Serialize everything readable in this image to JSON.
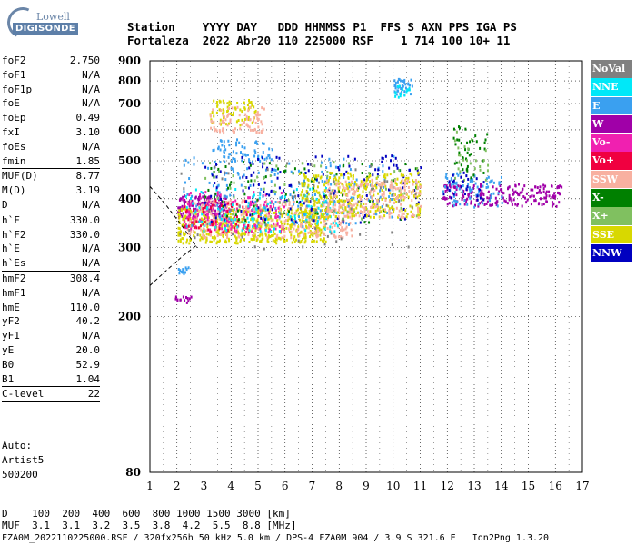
{
  "logo": {
    "line1": "Lowell",
    "line2": "DIGISONDE"
  },
  "header": {
    "line1": "Station    YYYY DAY   DDD HHMMSS P1  FFS S AXN PPS IGA PS",
    "line2": "Fortaleza  2022 Abr20 110 225000 RSF    1 714 100 10+ 11"
  },
  "params": [
    {
      "name": "foF2",
      "value": "2.750",
      "div": false
    },
    {
      "name": "foF1",
      "value": "N/A",
      "div": false
    },
    {
      "name": "foF1p",
      "value": "N/A",
      "div": false
    },
    {
      "name": "foE",
      "value": "N/A",
      "div": false
    },
    {
      "name": "foEp",
      "value": "0.49",
      "div": false
    },
    {
      "name": "fxI",
      "value": "3.10",
      "div": false
    },
    {
      "name": "foEs",
      "value": "N/A",
      "div": false
    },
    {
      "name": "fmin",
      "value": "1.85",
      "div": false
    },
    {
      "name": "MUF(D)",
      "value": "8.77",
      "div": true
    },
    {
      "name": "M(D)",
      "value": "3.19",
      "div": false
    },
    {
      "name": "D",
      "value": "N/A",
      "div": false
    },
    {
      "name": "h`F",
      "value": "330.0",
      "div": true
    },
    {
      "name": "h`F2",
      "value": "330.0",
      "div": false
    },
    {
      "name": "h`E",
      "value": "N/A",
      "div": false
    },
    {
      "name": "h`Es",
      "value": "N/A",
      "div": false
    },
    {
      "name": "hmF2",
      "value": "308.4",
      "div": true
    },
    {
      "name": "hmF1",
      "value": "N/A",
      "div": false
    },
    {
      "name": "hmE",
      "value": "110.0",
      "div": false
    },
    {
      "name": "yF2",
      "value": "40.2",
      "div": false
    },
    {
      "name": "yF1",
      "value": "N/A",
      "div": false
    },
    {
      "name": "yE",
      "value": "20.0",
      "div": false
    },
    {
      "name": "B0",
      "value": "52.9",
      "div": false
    },
    {
      "name": "B1",
      "value": "1.04",
      "div": false
    },
    {
      "name": "C-level",
      "value": "22",
      "div": true
    }
  ],
  "auto": {
    "label": "Auto:",
    "artist": "Artist5",
    "code": "500200"
  },
  "legend": [
    {
      "label": "NoVal",
      "color": "#808080"
    },
    {
      "label": "NNE",
      "color": "#00e8f8"
    },
    {
      "label": "E",
      "color": "#3aa0f0"
    },
    {
      "label": "W",
      "color": "#a000a8"
    },
    {
      "label": "Vo-",
      "color": "#f020b0"
    },
    {
      "label": "Vo+",
      "color": "#f00040"
    },
    {
      "label": "SSW",
      "color": "#f8b0a0"
    },
    {
      "label": "X-",
      "color": "#008000"
    },
    {
      "label": "X+",
      "color": "#80c060"
    },
    {
      "label": "SSE",
      "color": "#d8d800"
    },
    {
      "label": "NNW",
      "color": "#0000c0"
    }
  ],
  "footer": {
    "line1": "D    100  200  400  600  800 1000 1500 3000 [km]",
    "line2": "MUF  3.1  3.1  3.2  3.5  3.8  4.2  5.5  8.8 [MHz]",
    "line3": "FZA0M_2022110225000.RSF / 320fx256h 50 kHz 5.0 km / DPS-4 FZA0M 904 / 3.9 S 321.6 E   Ion2Png 1.3.20"
  },
  "chart_data": {
    "type": "scatter",
    "title": "",
    "xlabel": "",
    "ylabel": "",
    "xlim": [
      1,
      17
    ],
    "ylim": [
      80,
      900
    ],
    "xticks": [
      1,
      2,
      3,
      4,
      5,
      6,
      7,
      8,
      9,
      10,
      11,
      12,
      13,
      14,
      15,
      16,
      17
    ],
    "yticks": [
      80,
      200,
      300,
      400,
      500,
      600,
      700,
      800,
      900
    ],
    "y_scale": "log",
    "grid": true,
    "trace_curve": {
      "x": [
        1.0,
        1.6,
        2.2,
        2.75
      ],
      "y": [
        430,
        385,
        340,
        300
      ]
    },
    "trace_curve2": {
      "x": [
        1.0,
        1.6,
        2.2,
        2.75
      ],
      "y": [
        240,
        262,
        285,
        305
      ]
    },
    "clusters": [
      {
        "color_index": 2,
        "x": [
          2.0,
          2.4
        ],
        "y": [
          258,
          272
        ],
        "n": 12
      },
      {
        "color_index": 3,
        "x": [
          1.9,
          2.5
        ],
        "y": [
          218,
          228
        ],
        "n": 14
      },
      {
        "color_index": 9,
        "x": [
          3.2,
          4.9
        ],
        "y": [
          620,
          720
        ],
        "n": 70
      },
      {
        "color_index": 6,
        "x": [
          3.2,
          5.2
        ],
        "y": [
          590,
          690
        ],
        "n": 80
      },
      {
        "color_index": 2,
        "x": [
          3.3,
          5.5
        ],
        "y": [
          500,
          575
        ],
        "n": 60
      },
      {
        "color_index": 2,
        "x": [
          10.0,
          10.7
        ],
        "y": [
          740,
          815
        ],
        "n": 40
      },
      {
        "color_index": 1,
        "x": [
          10.0,
          10.6
        ],
        "y": [
          730,
          790
        ],
        "n": 15
      },
      {
        "color_index": 3,
        "x": [
          2.0,
          3.8
        ],
        "y": [
          360,
          410
        ],
        "n": 150
      },
      {
        "color_index": 9,
        "x": [
          2.0,
          7.5
        ],
        "y": [
          310,
          380
        ],
        "n": 500
      },
      {
        "color_index": 6,
        "x": [
          2.3,
          8.5
        ],
        "y": [
          320,
          400
        ],
        "n": 350
      },
      {
        "color_index": 4,
        "x": [
          2.2,
          6.0
        ],
        "y": [
          330,
          420
        ],
        "n": 150
      },
      {
        "color_index": 5,
        "x": [
          2.2,
          5.0
        ],
        "y": [
          330,
          400
        ],
        "n": 60
      },
      {
        "color_index": 1,
        "x": [
          2.2,
          8.0
        ],
        "y": [
          330,
          430
        ],
        "n": 120
      },
      {
        "color_index": 2,
        "x": [
          2.2,
          10.0
        ],
        "y": [
          340,
          520
        ],
        "n": 200
      },
      {
        "color_index": 10,
        "x": [
          3.0,
          11.0
        ],
        "y": [
          350,
          520
        ],
        "n": 150
      },
      {
        "color_index": 7,
        "x": [
          3.0,
          11.0
        ],
        "y": [
          350,
          500
        ],
        "n": 80
      },
      {
        "color_index": 8,
        "x": [
          3.0,
          11.0
        ],
        "y": [
          350,
          500
        ],
        "n": 80
      },
      {
        "color_index": 9,
        "x": [
          6.5,
          11.0
        ],
        "y": [
          360,
          470
        ],
        "n": 300
      },
      {
        "color_index": 6,
        "x": [
          7.5,
          11.0
        ],
        "y": [
          360,
          450
        ],
        "n": 200
      },
      {
        "color_index": 0,
        "x": [
          2.0,
          11.0
        ],
        "y": [
          300,
          500
        ],
        "n": 60
      },
      {
        "color_index": 3,
        "x": [
          11.8,
          16.2
        ],
        "y": [
          385,
          440
        ],
        "n": 200
      },
      {
        "color_index": 2,
        "x": [
          11.8,
          14.0
        ],
        "y": [
          380,
          470
        ],
        "n": 80
      },
      {
        "color_index": 7,
        "x": [
          12.2,
          13.5
        ],
        "y": [
          450,
          620
        ],
        "n": 40
      },
      {
        "color_index": 8,
        "x": [
          12.2,
          13.5
        ],
        "y": [
          430,
          600
        ],
        "n": 25
      },
      {
        "color_index": 10,
        "x": [
          11.8,
          13.5
        ],
        "y": [
          400,
          470
        ],
        "n": 25
      }
    ]
  }
}
